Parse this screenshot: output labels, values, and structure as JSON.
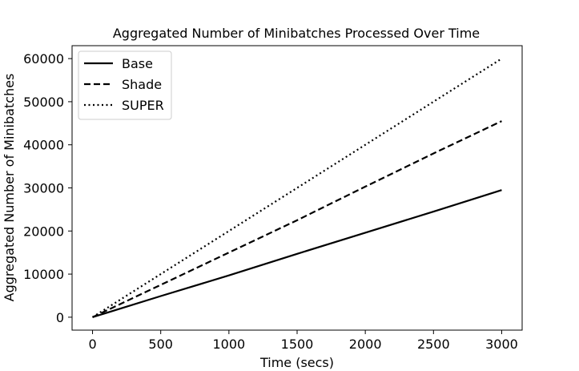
{
  "chart_data": {
    "type": "line",
    "title": "Aggregated Number of Minibatches Processed Over Time",
    "xlabel": "Time (secs)",
    "ylabel": "Aggregated Number of Minibatches",
    "xlim": [
      -150,
      3150
    ],
    "ylim": [
      -3000,
      63000
    ],
    "xticks": [
      0,
      500,
      1000,
      1500,
      2000,
      2500,
      3000
    ],
    "yticks": [
      0,
      10000,
      20000,
      30000,
      40000,
      50000,
      60000
    ],
    "xtick_labels": [
      "0",
      "500",
      "1000",
      "1500",
      "2000",
      "2500",
      "3000"
    ],
    "ytick_labels": [
      "0",
      "10000",
      "20000",
      "30000",
      "40000",
      "50000",
      "60000"
    ],
    "grid": false,
    "legend_position": "top-left",
    "series": [
      {
        "name": "Base",
        "line_style": "solid",
        "color": "#000000",
        "x": [
          0,
          500,
          1000,
          1500,
          2000,
          2500,
          3000
        ],
        "y": [
          0,
          4900,
          9700,
          14700,
          19600,
          24500,
          29500
        ]
      },
      {
        "name": "Shade",
        "line_style": "dashed",
        "color": "#000000",
        "x": [
          0,
          500,
          1000,
          1500,
          2000,
          2500,
          3000
        ],
        "y": [
          0,
          7500,
          15000,
          22500,
          30300,
          38000,
          45500
        ]
      },
      {
        "name": "SUPER",
        "line_style": "dotted",
        "color": "#000000",
        "x": [
          0,
          500,
          1000,
          1500,
          2000,
          2500,
          3000
        ],
        "y": [
          0,
          10000,
          20000,
          30000,
          40000,
          50000,
          60000
        ]
      }
    ]
  }
}
